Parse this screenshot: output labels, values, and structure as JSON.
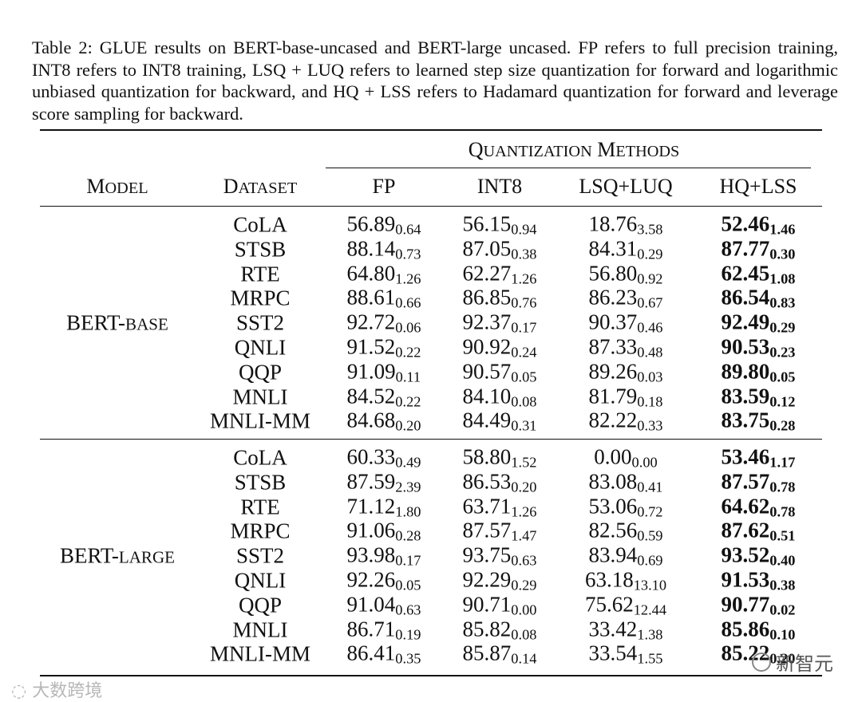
{
  "caption": "Table 2: GLUE results on BERT-base-uncased and BERT-large uncased. FP refers to full precision training, INT8 refers to INT8 training, LSQ + LUQ refers to learned step size quantization for forward and logarithmic unbiased quantization for backward, and HQ + LSS refers to Hadamard quantization for forward and leverage score sampling for backward.",
  "headers": {
    "group": "Quantization Methods",
    "model": "Model",
    "dataset": "Dataset",
    "methods": [
      "FP",
      "INT8",
      "LSQ+LUQ",
      "HQ+LSS"
    ]
  },
  "groups": [
    {
      "model": "Bert-base",
      "rows": [
        {
          "dataset": "CoLA",
          "fp": [
            "56.89",
            "0.64"
          ],
          "int8": [
            "56.15",
            "0.94"
          ],
          "lsq": [
            "18.76",
            "3.58"
          ],
          "hq": [
            "52.46",
            "1.46"
          ]
        },
        {
          "dataset": "STSB",
          "fp": [
            "88.14",
            "0.73"
          ],
          "int8": [
            "87.05",
            "0.38"
          ],
          "lsq": [
            "84.31",
            "0.29"
          ],
          "hq": [
            "87.77",
            "0.30"
          ]
        },
        {
          "dataset": "RTE",
          "fp": [
            "64.80",
            "1.26"
          ],
          "int8": [
            "62.27",
            "1.26"
          ],
          "lsq": [
            "56.80",
            "0.92"
          ],
          "hq": [
            "62.45",
            "1.08"
          ]
        },
        {
          "dataset": "MRPC",
          "fp": [
            "88.61",
            "0.66"
          ],
          "int8": [
            "86.85",
            "0.76"
          ],
          "lsq": [
            "86.23",
            "0.67"
          ],
          "hq": [
            "86.54",
            "0.83"
          ]
        },
        {
          "dataset": "SST2",
          "fp": [
            "92.72",
            "0.06"
          ],
          "int8": [
            "92.37",
            "0.17"
          ],
          "lsq": [
            "90.37",
            "0.46"
          ],
          "hq": [
            "92.49",
            "0.29"
          ]
        },
        {
          "dataset": "QNLI",
          "fp": [
            "91.52",
            "0.22"
          ],
          "int8": [
            "90.92",
            "0.24"
          ],
          "lsq": [
            "87.33",
            "0.48"
          ],
          "hq": [
            "90.53",
            "0.23"
          ]
        },
        {
          "dataset": "QQP",
          "fp": [
            "91.09",
            "0.11"
          ],
          "int8": [
            "90.57",
            "0.05"
          ],
          "lsq": [
            "89.26",
            "0.03"
          ],
          "hq": [
            "89.80",
            "0.05"
          ]
        },
        {
          "dataset": "MNLI",
          "fp": [
            "84.52",
            "0.22"
          ],
          "int8": [
            "84.10",
            "0.08"
          ],
          "lsq": [
            "81.79",
            "0.18"
          ],
          "hq": [
            "83.59",
            "0.12"
          ]
        },
        {
          "dataset": "MNLI-mm",
          "fp": [
            "84.68",
            "0.20"
          ],
          "int8": [
            "84.49",
            "0.31"
          ],
          "lsq": [
            "82.22",
            "0.33"
          ],
          "hq": [
            "83.75",
            "0.28"
          ]
        }
      ]
    },
    {
      "model": "Bert-large",
      "rows": [
        {
          "dataset": "CoLA",
          "fp": [
            "60.33",
            "0.49"
          ],
          "int8": [
            "58.80",
            "1.52"
          ],
          "lsq": [
            "0.00",
            "0.00"
          ],
          "hq": [
            "53.46",
            "1.17"
          ]
        },
        {
          "dataset": "STSB",
          "fp": [
            "87.59",
            "2.39"
          ],
          "int8": [
            "86.53",
            "0.20"
          ],
          "lsq": [
            "83.08",
            "0.41"
          ],
          "hq": [
            "87.57",
            "0.78"
          ]
        },
        {
          "dataset": "RTE",
          "fp": [
            "71.12",
            "1.80"
          ],
          "int8": [
            "63.71",
            "1.26"
          ],
          "lsq": [
            "53.06",
            "0.72"
          ],
          "hq": [
            "64.62",
            "0.78"
          ]
        },
        {
          "dataset": "MRPC",
          "fp": [
            "91.06",
            "0.28"
          ],
          "int8": [
            "87.57",
            "1.47"
          ],
          "lsq": [
            "82.56",
            "0.59"
          ],
          "hq": [
            "87.62",
            "0.51"
          ]
        },
        {
          "dataset": "SST2",
          "fp": [
            "93.98",
            "0.17"
          ],
          "int8": [
            "93.75",
            "0.63"
          ],
          "lsq": [
            "83.94",
            "0.69"
          ],
          "hq": [
            "93.52",
            "0.40"
          ]
        },
        {
          "dataset": "QNLI",
          "fp": [
            "92.26",
            "0.05"
          ],
          "int8": [
            "92.29",
            "0.29"
          ],
          "lsq": [
            "63.18",
            "13.10"
          ],
          "hq": [
            "91.53",
            "0.38"
          ]
        },
        {
          "dataset": "QQP",
          "fp": [
            "91.04",
            "0.63"
          ],
          "int8": [
            "90.71",
            "0.00"
          ],
          "lsq": [
            "75.62",
            "12.44"
          ],
          "hq": [
            "90.77",
            "0.02"
          ]
        },
        {
          "dataset": "MNLI",
          "fp": [
            "86.71",
            "0.19"
          ],
          "int8": [
            "85.82",
            "0.08"
          ],
          "lsq": [
            "33.42",
            "1.38"
          ],
          "hq": [
            "85.86",
            "0.10"
          ]
        },
        {
          "dataset": "MNLI-mm",
          "fp": [
            "86.41",
            "0.35"
          ],
          "int8": [
            "85.87",
            "0.14"
          ],
          "lsq": [
            "33.54",
            "1.55"
          ],
          "hq": [
            "85.22",
            "0.20"
          ]
        }
      ]
    }
  ],
  "watermarks": {
    "left": "大数跨境",
    "right": "新智元"
  }
}
